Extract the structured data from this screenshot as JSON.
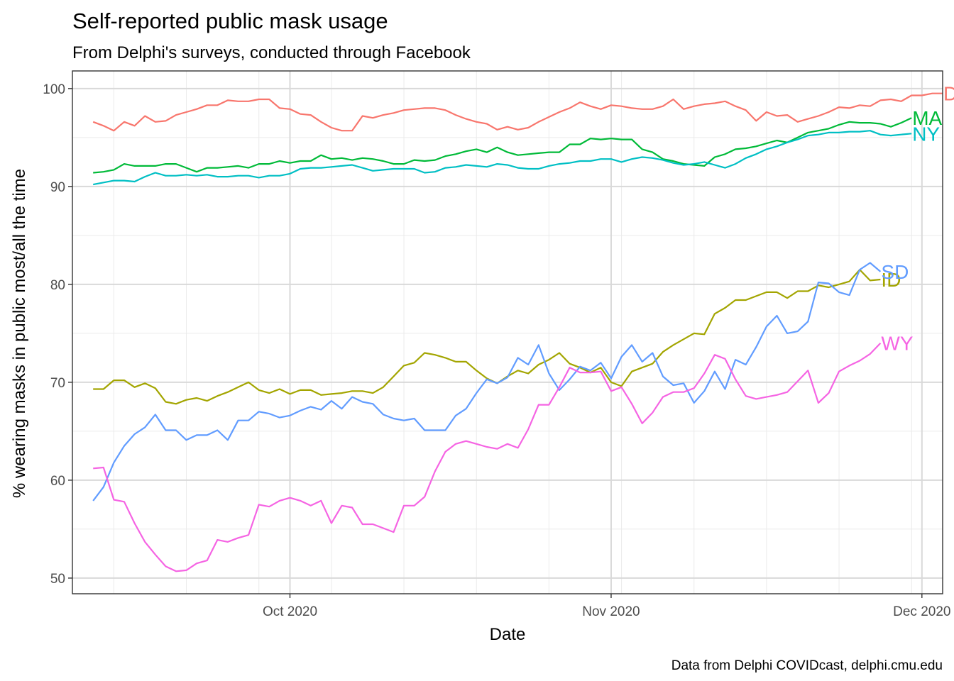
{
  "chart_data": {
    "type": "line",
    "title": "Self-reported public mask usage",
    "subtitle": "From Delphi's surveys, conducted through Facebook",
    "xlabel": "Date",
    "ylabel": "% wearing masks in public most/all the time",
    "caption": "Data from Delphi COVIDcast, delphi.cmu.edu",
    "x_tick_labels": [
      {
        "date": "2020-10-01",
        "label": "Oct 2020"
      },
      {
        "date": "2020-11-01",
        "label": "Nov 2020"
      },
      {
        "date": "2020-12-01",
        "label": "Dec 2020"
      }
    ],
    "y_ticks": [
      50,
      60,
      70,
      80,
      90,
      100
    ],
    "xlim": [
      "2020-09-10",
      "2020-12-03"
    ],
    "ylim": [
      48.4,
      101.8
    ],
    "grid": true,
    "legend": "direct labels at line ends",
    "start_date": "2020-09-12",
    "series": [
      {
        "name": "DC",
        "color": "#F8766D",
        "values": [
          96.6,
          96.2,
          95.7,
          96.6,
          96.2,
          97.2,
          96.6,
          96.7,
          97.3,
          97.6,
          97.9,
          98.3,
          98.3,
          98.8,
          98.7,
          98.7,
          98.9,
          98.9,
          98.0,
          97.9,
          97.4,
          97.3,
          96.6,
          96.0,
          95.7,
          95.7,
          97.2,
          97.0,
          97.3,
          97.5,
          97.8,
          97.9,
          98.0,
          98.0,
          97.8,
          97.3,
          96.9,
          96.6,
          96.4,
          95.8,
          96.1,
          95.8,
          96.0,
          96.6,
          97.1,
          97.6,
          98.0,
          98.6,
          98.2,
          97.9,
          98.3,
          98.2,
          98.0,
          97.9,
          97.9,
          98.2,
          98.9,
          97.9,
          98.2,
          98.4,
          98.5,
          98.7,
          98.2,
          97.8,
          96.7,
          97.6,
          97.2,
          97.3,
          96.6,
          96.9,
          97.2,
          97.6,
          98.1,
          98.0,
          98.3,
          98.2,
          98.8,
          98.9,
          98.7,
          99.3,
          99.3,
          99.5,
          99.5
        ]
      },
      {
        "name": "MA",
        "color": "#00BA38",
        "values": [
          91.4,
          91.5,
          91.7,
          92.3,
          92.1,
          92.1,
          92.1,
          92.3,
          92.3,
          91.9,
          91.5,
          91.9,
          91.9,
          92.0,
          92.1,
          91.9,
          92.3,
          92.3,
          92.6,
          92.4,
          92.6,
          92.6,
          93.2,
          92.8,
          92.9,
          92.7,
          92.9,
          92.8,
          92.6,
          92.3,
          92.3,
          92.7,
          92.6,
          92.7,
          93.1,
          93.3,
          93.6,
          93.8,
          93.5,
          94.0,
          93.5,
          93.2,
          93.3,
          93.4,
          93.5,
          93.5,
          94.3,
          94.3,
          94.9,
          94.8,
          94.9,
          94.8,
          94.8,
          93.8,
          93.5,
          92.8,
          92.6,
          92.3,
          92.2,
          92.1,
          93.0,
          93.3,
          93.8,
          93.9,
          94.1,
          94.4,
          94.7,
          94.5,
          95.0,
          95.5,
          95.7,
          95.9,
          96.3,
          96.6,
          96.5,
          96.5,
          96.4,
          96.1,
          96.5,
          97.0
        ]
      },
      {
        "name": "NY",
        "color": "#00BFC4",
        "values": [
          90.2,
          90.4,
          90.6,
          90.6,
          90.5,
          91.0,
          91.4,
          91.1,
          91.1,
          91.2,
          91.1,
          91.2,
          91.0,
          91.0,
          91.1,
          91.1,
          90.9,
          91.1,
          91.1,
          91.3,
          91.8,
          91.9,
          91.9,
          92.0,
          92.1,
          92.2,
          91.9,
          91.6,
          91.7,
          91.8,
          91.8,
          91.8,
          91.4,
          91.5,
          91.9,
          92.0,
          92.2,
          92.1,
          92.0,
          92.3,
          92.2,
          91.9,
          91.8,
          91.8,
          92.1,
          92.3,
          92.4,
          92.6,
          92.6,
          92.8,
          92.8,
          92.5,
          92.8,
          93.0,
          92.9,
          92.7,
          92.4,
          92.2,
          92.3,
          92.5,
          92.2,
          91.9,
          92.3,
          92.9,
          93.3,
          93.8,
          94.1,
          94.5,
          94.8,
          95.2,
          95.3,
          95.5,
          95.5,
          95.6,
          95.6,
          95.7,
          95.3,
          95.2,
          95.3,
          95.4
        ]
      },
      {
        "name": "ID",
        "color": "#A3A500",
        "values": [
          69.3,
          69.3,
          70.2,
          70.2,
          69.5,
          69.9,
          69.4,
          68.0,
          67.8,
          68.2,
          68.4,
          68.1,
          68.6,
          69.0,
          69.5,
          70.0,
          69.2,
          68.9,
          69.3,
          68.8,
          69.2,
          69.2,
          68.7,
          68.8,
          68.9,
          69.1,
          69.1,
          68.9,
          69.5,
          70.6,
          71.7,
          72.0,
          73.0,
          72.8,
          72.5,
          72.1,
          72.1,
          71.2,
          70.4,
          69.9,
          70.6,
          71.2,
          70.9,
          71.8,
          72.3,
          73.0,
          71.9,
          71.5,
          71.0,
          71.5,
          70.0,
          69.6,
          71.1,
          71.5,
          71.9,
          73.1,
          73.8,
          74.4,
          75.0,
          74.9,
          77.0,
          77.6,
          78.4,
          78.4,
          78.8,
          79.2,
          79.2,
          78.6,
          79.3,
          79.3,
          79.9,
          79.7,
          80.0,
          80.3,
          81.5,
          80.4,
          80.5
        ]
      },
      {
        "name": "SD",
        "color": "#619CFF",
        "values": [
          57.9,
          59.3,
          61.8,
          63.5,
          64.7,
          65.4,
          66.7,
          65.1,
          65.1,
          64.1,
          64.6,
          64.6,
          65.1,
          64.1,
          66.1,
          66.1,
          67.0,
          66.8,
          66.4,
          66.6,
          67.1,
          67.5,
          67.2,
          68.1,
          67.3,
          68.5,
          68.0,
          67.8,
          66.7,
          66.3,
          66.1,
          66.3,
          65.1,
          65.1,
          65.1,
          66.6,
          67.3,
          68.9,
          70.3,
          69.9,
          70.5,
          72.5,
          71.8,
          73.8,
          70.9,
          69.2,
          70.3,
          71.6,
          71.2,
          72.0,
          70.4,
          72.6,
          73.8,
          72.1,
          73.0,
          70.6,
          69.7,
          69.9,
          67.9,
          69.1,
          71.1,
          69.3,
          72.3,
          71.8,
          73.6,
          75.7,
          76.8,
          75.0,
          75.2,
          76.2,
          80.2,
          80.1,
          79.2,
          78.9,
          81.5,
          82.2,
          81.3
        ]
      },
      {
        "name": "WY",
        "color": "#F564E3",
        "values": [
          61.2,
          61.3,
          58.0,
          57.8,
          55.6,
          53.7,
          52.4,
          51.2,
          50.7,
          50.8,
          51.5,
          51.8,
          53.9,
          53.7,
          54.1,
          54.4,
          57.5,
          57.3,
          57.9,
          58.2,
          57.9,
          57.4,
          57.9,
          55.6,
          57.4,
          57.2,
          55.5,
          55.5,
          55.1,
          54.7,
          57.4,
          57.4,
          58.3,
          60.9,
          62.9,
          63.7,
          64.0,
          63.7,
          63.4,
          63.2,
          63.7,
          63.3,
          65.2,
          67.7,
          67.7,
          69.5,
          71.5,
          71.0,
          71.0,
          71.1,
          69.1,
          69.5,
          67.8,
          65.8,
          66.9,
          68.5,
          69.0,
          69.0,
          69.4,
          70.9,
          72.8,
          72.4,
          70.3,
          68.6,
          68.3,
          68.5,
          68.7,
          69.0,
          70.1,
          71.2,
          67.9,
          68.9,
          71.1,
          71.7,
          72.2,
          72.9,
          74.0
        ]
      }
    ]
  }
}
